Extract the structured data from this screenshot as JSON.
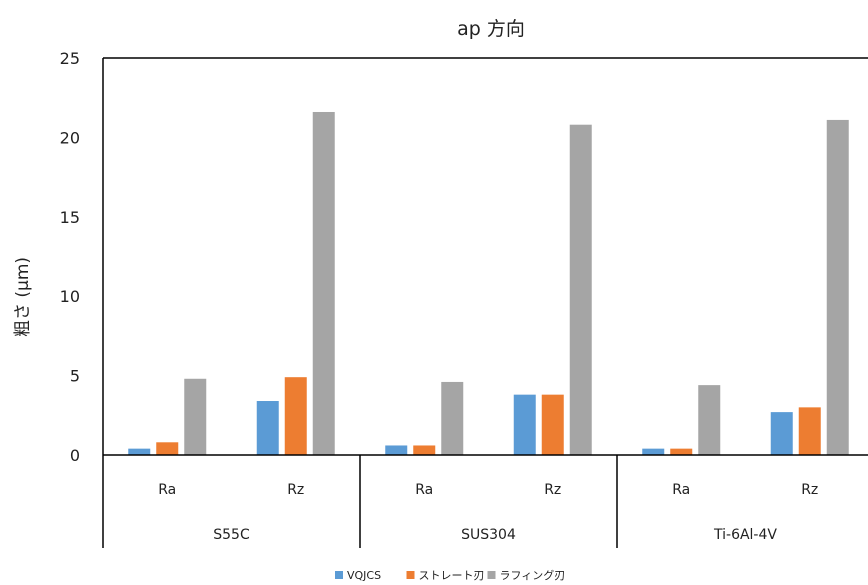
{
  "chart_data": {
    "type": "bar",
    "title": "ap 方向",
    "ylabel": "粗さ (μm)",
    "ylim": [
      0,
      25
    ],
    "yticks": [
      0,
      5,
      10,
      15,
      20,
      25
    ],
    "groups": [
      {
        "name": "S55C",
        "categories": [
          "Ra",
          "Rz"
        ]
      },
      {
        "name": "SUS304",
        "categories": [
          "Ra",
          "Rz"
        ]
      },
      {
        "name": "Ti-6Al-4V",
        "categories": [
          "Ra",
          "Rz"
        ]
      }
    ],
    "series": [
      {
        "name": "VQJCS",
        "color": "#5b9bd5",
        "values": [
          0.4,
          3.4,
          0.6,
          3.8,
          0.4,
          2.7
        ]
      },
      {
        "name": "ストレート刃",
        "color": "#ed7d31",
        "values": [
          0.8,
          4.9,
          0.6,
          3.8,
          0.4,
          3.0
        ]
      },
      {
        "name": "ラフィング刃",
        "color": "#a5a5a5",
        "values": [
          4.8,
          21.6,
          4.6,
          20.8,
          4.4,
          21.1
        ]
      }
    ],
    "grid": false,
    "legend_position": "bottom"
  }
}
